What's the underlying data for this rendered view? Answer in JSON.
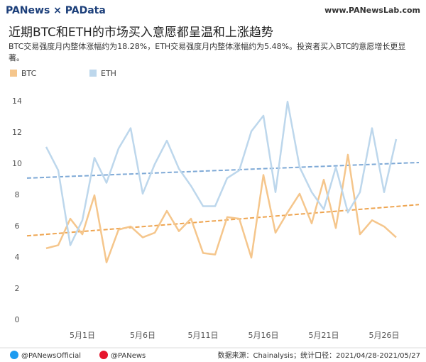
{
  "header": {
    "logo": "PANews × PAData",
    "site": "www.PANewsLab.com"
  },
  "chart_data": {
    "type": "line",
    "title": "近期BTC和ETH的市场买入意愿都呈温和上涨趋势",
    "subtitle": "BTC交易强度月内整体涨幅约为18.28%，ETH交易强度月内整体涨幅约为5.48%。投资者买入BTC的意愿增长更显著。",
    "categories": [
      null,
      null,
      null,
      "5月1日",
      null,
      null,
      null,
      null,
      "5月6日",
      null,
      null,
      null,
      null,
      "5月11日",
      null,
      null,
      null,
      null,
      "5月16日",
      null,
      null,
      null,
      null,
      "5月21日",
      null,
      null,
      null,
      null,
      "5月26日",
      null
    ],
    "series": [
      {
        "name": "BTC",
        "color": "#f5c68c",
        "trend_color": "#eea551",
        "trend": [
          5.4,
          7.4
        ],
        "values": [
          4.6,
          4.8,
          6.5,
          5.5,
          8.0,
          3.7,
          5.8,
          6.0,
          5.3,
          5.6,
          7.0,
          5.7,
          6.5,
          4.3,
          4.2,
          6.6,
          6.5,
          4.0,
          9.3,
          5.6,
          6.9,
          8.1,
          6.2,
          9.0,
          5.9,
          10.6,
          5.5,
          6.4,
          6.0,
          5.3
        ]
      },
      {
        "name": "ETH",
        "color": "#bdd7ec",
        "trend_color": "#7ea9d6",
        "trend": [
          9.1,
          10.1
        ],
        "values": [
          11.1,
          9.6,
          4.8,
          6.4,
          10.4,
          8.8,
          11.0,
          12.3,
          8.1,
          10.0,
          11.5,
          9.7,
          8.6,
          7.3,
          7.3,
          9.1,
          9.6,
          12.1,
          13.1,
          8.2,
          14.0,
          9.8,
          8.2,
          7.1,
          9.8,
          6.9,
          8.2,
          12.3,
          8.2,
          11.6
        ]
      }
    ],
    "ylim": [
      0,
      14.6
    ],
    "yticks": [
      0,
      2,
      4,
      6,
      8,
      10,
      12,
      14
    ],
    "grid": false
  },
  "footer": {
    "twitter": "@PANewsOfficial",
    "weibo": "@PANews",
    "source": "数据来源：Chainalysis；统计口径：2021/04/28-2021/05/27"
  }
}
